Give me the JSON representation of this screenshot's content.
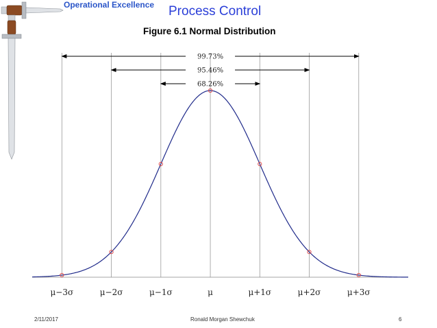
{
  "header": {
    "brand": "Operational Excellence",
    "title": "Process Control",
    "figure_title": "Figure 6.1  Normal Distribution"
  },
  "footer": {
    "date": "2/11/2017",
    "author": "Ronald Morgan Shewchuk",
    "page": "6"
  },
  "colors": {
    "curve": "#1f2a8a",
    "markers": "#e05050",
    "title": "#2b3fd8",
    "brand": "#2a55c8"
  },
  "icons": [
    "sword-icon"
  ],
  "chart_data": {
    "type": "line",
    "title": "Figure 6.1  Normal Distribution",
    "xlabel": "",
    "ylabel": "",
    "xlim": [
      -3.6,
      4.0
    ],
    "categories_sigma": [
      -3,
      -2,
      -1,
      0,
      1,
      2,
      3
    ],
    "tick_labels": [
      "μ−3σ",
      "μ−2σ",
      "μ−1σ",
      "μ",
      "μ+1σ",
      "μ+2σ",
      "μ+3σ"
    ],
    "series": [
      {
        "function": "standard normal density",
        "mean": 0,
        "sd": 1
      }
    ],
    "marked_points_sigma": [
      -3,
      -2,
      -1,
      0,
      1,
      2,
      3
    ],
    "intervals": [
      {
        "label": "99.73%",
        "from": -3,
        "to": 3
      },
      {
        "label": "95.46%",
        "from": -2,
        "to": 2
      },
      {
        "label": "68.26%",
        "from": -1,
        "to": 1
      }
    ],
    "grid": false,
    "legend": "none"
  }
}
